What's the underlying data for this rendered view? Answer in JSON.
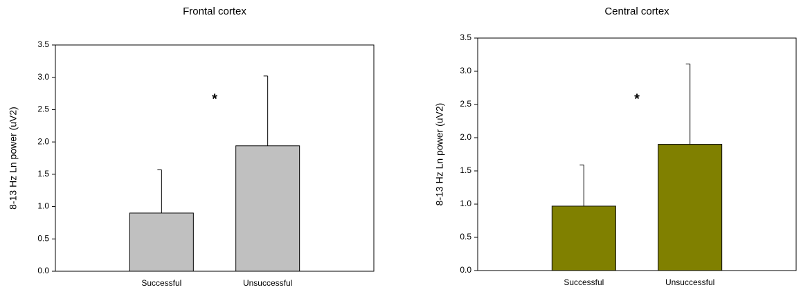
{
  "chart_data": [
    {
      "type": "bar",
      "title": "Frontal cortex",
      "y_label": "8-13 Hz Ln power (uV2)",
      "categories": [
        "Successful",
        "Unsuccessful"
      ],
      "values": [
        0.9,
        1.94
      ],
      "errors": [
        0.67,
        1.08
      ],
      "color": "#c0c0c0",
      "annotation": "*",
      "ylim": [
        0,
        3.5
      ],
      "yticks": [
        {
          "value": 0,
          "label": "0.0"
        },
        0.5,
        {
          "value": 1,
          "label": "1.0"
        },
        1.5,
        {
          "value": 2,
          "label": "2.0"
        },
        2.5,
        {
          "value": 3,
          "label": "3.0"
        },
        3.5
      ]
    },
    {
      "type": "bar",
      "title": "Central cortex",
      "y_label": "8-13 Hz Ln power (uV2)",
      "categories": [
        "Successful",
        "Unsuccessful"
      ],
      "values": [
        0.97,
        1.9
      ],
      "errors": [
        0.62,
        1.21
      ],
      "color": "#808000",
      "annotation": "*",
      "ylim": [
        0,
        3.5
      ],
      "yticks": [
        {
          "value": 0,
          "label": "0.0"
        },
        0.5,
        {
          "value": 1,
          "label": "1.0"
        },
        1.5,
        {
          "value": 2,
          "label": "2.0"
        },
        2.5,
        {
          "value": 3,
          "label": "3.0"
        },
        3.5
      ]
    }
  ]
}
